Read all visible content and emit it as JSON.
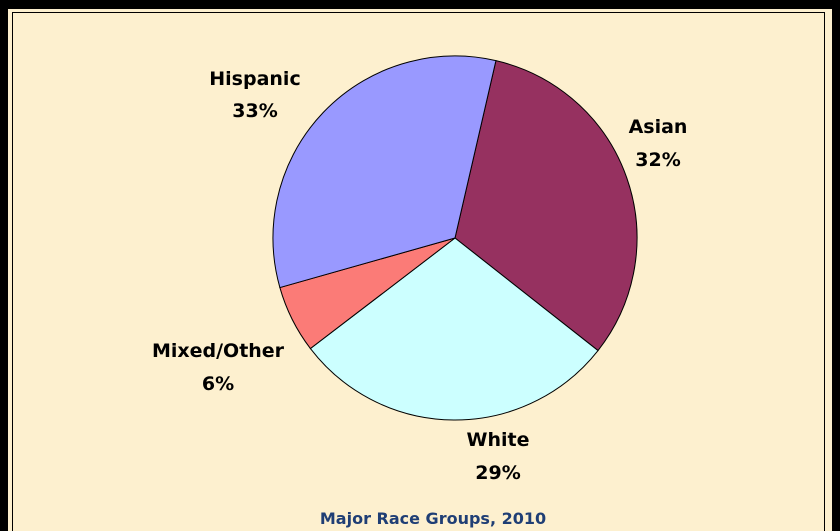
{
  "chart_data": {
    "type": "pie",
    "title": "Major Race Groups, 2010",
    "slices": [
      {
        "label": "Asian",
        "value": 32,
        "value_label": "32%",
        "color": "#963160"
      },
      {
        "label": "White",
        "value": 29,
        "value_label": "29%",
        "color": "#ccffff"
      },
      {
        "label": "Mixed/Other",
        "value": 6,
        "value_label": "6%",
        "color": "#fb7b77"
      },
      {
        "label": "Hispanic",
        "value": 33,
        "value_label": "33%",
        "color": "#9999ff"
      }
    ],
    "legend": "none"
  },
  "colors": {
    "background": "#fdf0cf",
    "frame": "#000000",
    "title": "#1f3e75"
  }
}
